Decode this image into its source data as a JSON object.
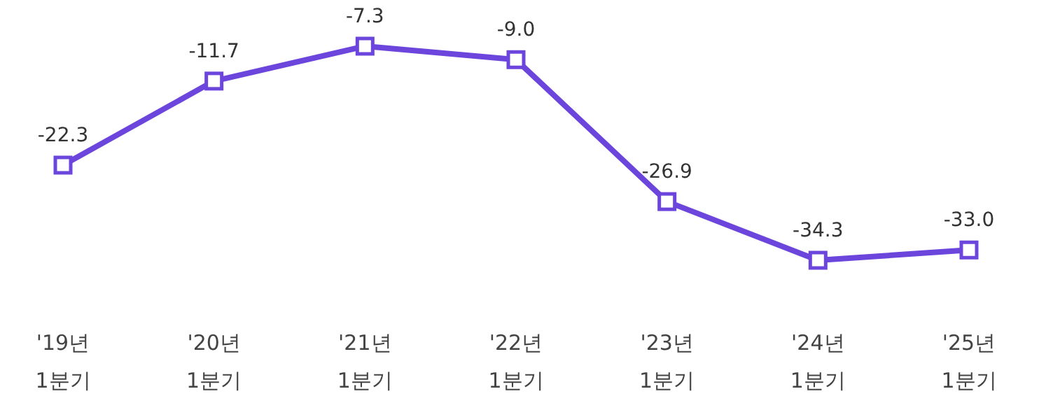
{
  "chart_data": {
    "type": "line",
    "categories": [
      "'19년\n1분기",
      "'20년\n1분기",
      "'21년\n1분기",
      "'22년\n1분기",
      "'23년\n1분기",
      "'24년\n1분기",
      "'25년\n1분기"
    ],
    "series": [
      {
        "color": "#6c46dc",
        "values": [
          -22.3,
          -11.7,
          -7.3,
          -9.0,
          -26.9,
          -34.3,
          -33.0
        ],
        "value_labels": [
          "-22.3",
          "-11.7",
          "-7.3",
          "-9.0",
          "-26.9",
          "-34.3",
          "-33.0"
        ]
      }
    ],
    "marker": "square",
    "line_style": "solid"
  }
}
